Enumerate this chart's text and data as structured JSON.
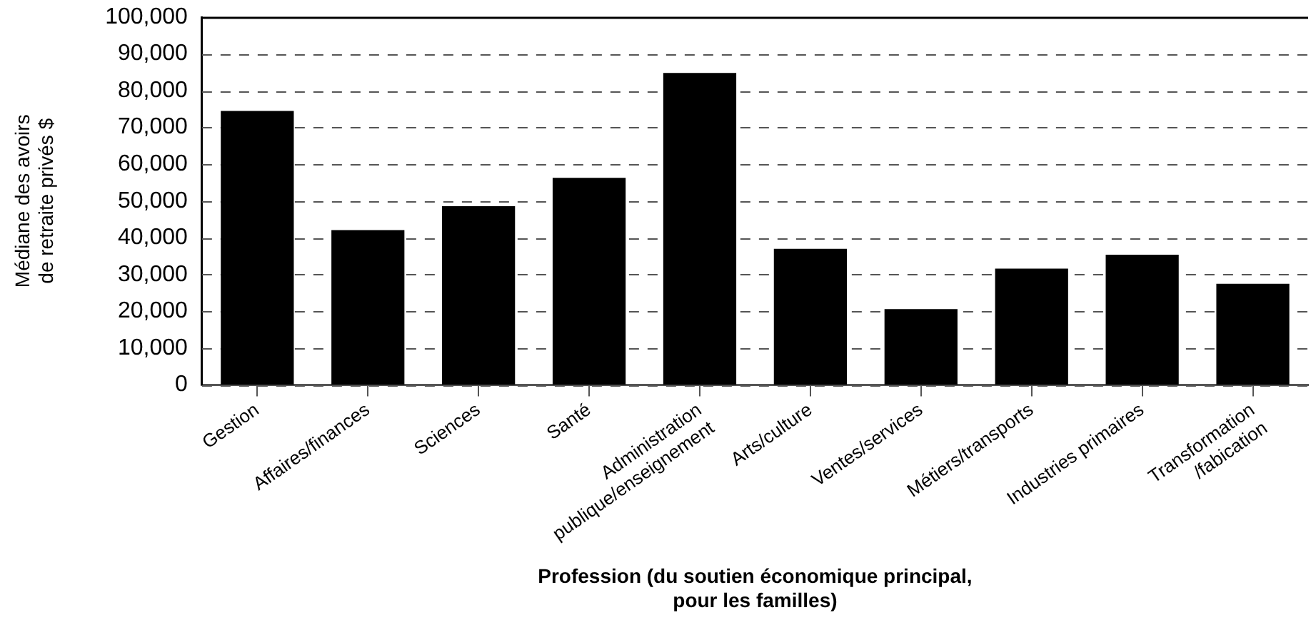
{
  "chart_data": {
    "type": "bar",
    "xlabel": "Profession (du soutien économique principal,\npour les familles)",
    "ylabel": "Médiane des avoirs\nde retraite privés $",
    "categories": [
      "Gestion",
      "Affaires/finances",
      "Sciences",
      "Santé",
      "Administration\npublique/enseignement",
      "Arts/culture",
      "Ventes/services",
      "Métiers/transports",
      "Industries primaires",
      "Transformation\n/fabication"
    ],
    "values": [
      74500,
      42100,
      48600,
      56300,
      84800,
      37000,
      20600,
      31600,
      35400,
      27500
    ],
    "color": "#000000",
    "ylim": [
      0,
      100000
    ],
    "yticks": [
      {
        "value": 0,
        "label": "0"
      },
      {
        "value": 10000,
        "label": "10,000"
      },
      {
        "value": 20000,
        "label": "20,000"
      },
      {
        "value": 30000,
        "label": "30,000"
      },
      {
        "value": 40000,
        "label": "40,000"
      },
      {
        "value": 50000,
        "label": "50,000"
      },
      {
        "value": 60000,
        "label": "60,000"
      },
      {
        "value": 70000,
        "label": "70,000"
      },
      {
        "value": 80000,
        "label": "80,000"
      },
      {
        "value": 90000,
        "label": "90,000"
      },
      {
        "value": 100000,
        "label": "100,000"
      }
    ],
    "grid": "y",
    "legend": false
  }
}
